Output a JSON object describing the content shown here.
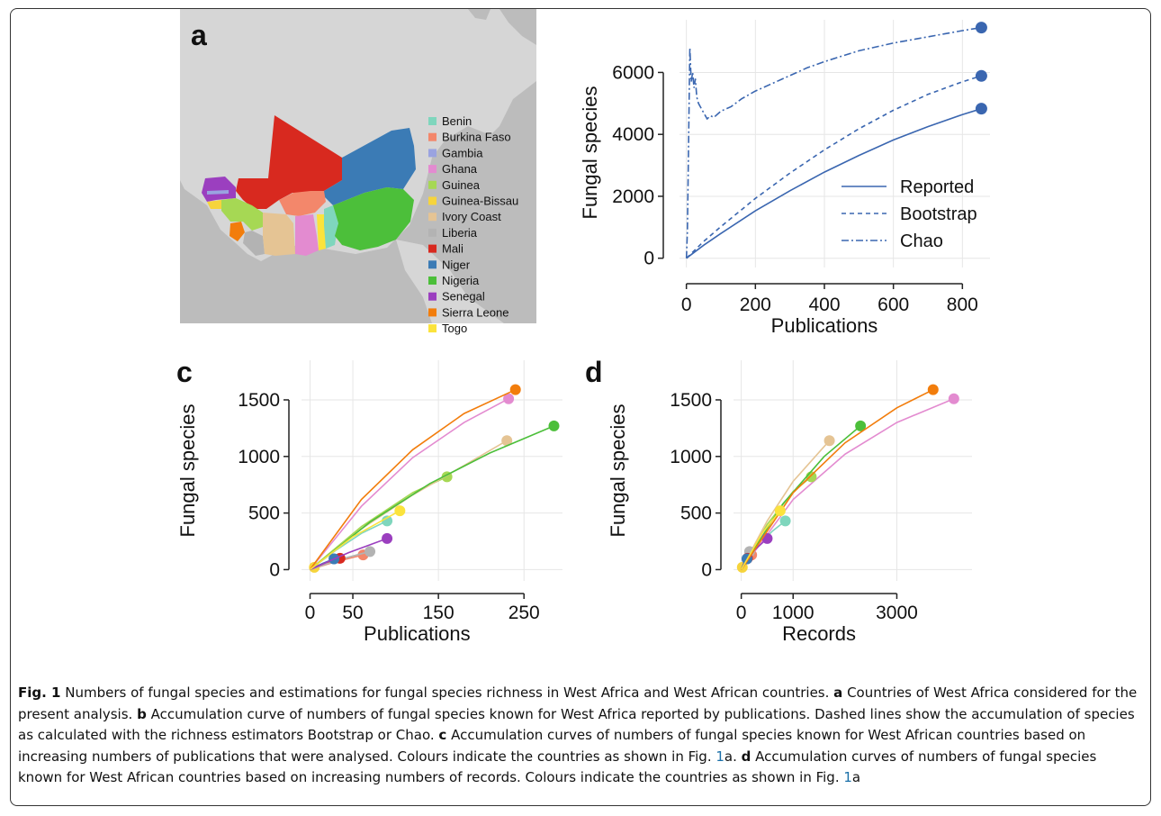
{
  "caption": {
    "fig_label": "Fig. 1",
    "intro": " Numbers of fungal species and estimations for fungal species richness in West Africa and West African countries. ",
    "a": "a",
    "a_text": " Countries of West Africa considered for the present analysis. ",
    "b": "b",
    "b_text": " Accumulation curve of numbers of fungal species known for West Africa reported by publications. Dashed lines show the accumulation of species as calculated with the richness estimators Bootstrap or Chao. ",
    "c": "c",
    "c_text": " Accumulation curves of numbers of fungal species known for West African countries based on increasing numbers of publications that were analysed. Colours indicate the countries as shown in Fig. ",
    "c_ref": "1",
    "c_ref_suffix": "a. ",
    "d": "d",
    "d_text": " Accumulation curves of numbers of fungal species known for West African countries based on increasing numbers of records. Colours indicate the countries as shown in Fig. ",
    "d_ref": "1",
    "d_ref_suffix": "a"
  },
  "map": {
    "label": "a",
    "legend": [
      {
        "name": "Benin",
        "color": "#7fd6bd"
      },
      {
        "name": "Burkina Faso",
        "color": "#f3876b"
      },
      {
        "name": "Gambia",
        "color": "#9aa3e0"
      },
      {
        "name": "Ghana",
        "color": "#e38bd0"
      },
      {
        "name": "Guinea",
        "color": "#a6d854"
      },
      {
        "name": "Guinea-Bissau",
        "color": "#f6d43c"
      },
      {
        "name": "Ivory Coast",
        "color": "#e5c494"
      },
      {
        "name": "Liberia",
        "color": "#b3b3b3"
      },
      {
        "name": "Mali",
        "color": "#d8291f"
      },
      {
        "name": "Niger",
        "color": "#3b7bb5"
      },
      {
        "name": "Nigeria",
        "color": "#4cbf3a"
      },
      {
        "name": "Senegal",
        "color": "#9b3fbf"
      },
      {
        "name": "Sierra Leone",
        "color": "#f27d0c"
      },
      {
        "name": "Togo",
        "color": "#fbe33c"
      }
    ]
  },
  "chart_data": [
    {
      "panel": "b",
      "type": "line",
      "xlabel": "Publications",
      "ylabel": "Fungal species",
      "xlim": [
        -20,
        880
      ],
      "ylim": [
        -300,
        7700
      ],
      "xticks": [
        0,
        200,
        400,
        600,
        800
      ],
      "yticks": [
        0,
        2000,
        4000,
        6000
      ],
      "grid": true,
      "legend_position": "bottom-right",
      "series": [
        {
          "name": "Reported",
          "style": "solid",
          "color": "#3a66b0",
          "x": [
            0,
            50,
            100,
            200,
            300,
            400,
            500,
            600,
            700,
            800,
            855
          ],
          "y": [
            0,
            420,
            800,
            1530,
            2180,
            2780,
            3320,
            3820,
            4250,
            4640,
            4830
          ]
        },
        {
          "name": "Bootstrap",
          "style": "dashed",
          "color": "#3a66b0",
          "x": [
            0,
            50,
            100,
            200,
            300,
            400,
            500,
            600,
            700,
            800,
            855
          ],
          "y": [
            0,
            540,
            1020,
            1930,
            2750,
            3500,
            4180,
            4780,
            5290,
            5700,
            5890
          ]
        },
        {
          "name": "Chao",
          "style": "dashdot",
          "color": "#3a66b0",
          "x": [
            0,
            3,
            6,
            10,
            14,
            18,
            22,
            26,
            30,
            35,
            40,
            50,
            60,
            70,
            80,
            100,
            130,
            160,
            200,
            250,
            300,
            350,
            400,
            500,
            600,
            700,
            800,
            855
          ],
          "y": [
            0,
            900,
            3500,
            6800,
            5700,
            6000,
            5500,
            5800,
            5200,
            5000,
            4900,
            4700,
            4500,
            4600,
            4550,
            4750,
            4900,
            5150,
            5400,
            5650,
            5900,
            6150,
            6350,
            6700,
            6950,
            7150,
            7350,
            7450
          ]
        }
      ],
      "endpoints": [
        {
          "series": "Chao",
          "x": 855,
          "y": 7450
        },
        {
          "series": "Bootstrap",
          "x": 855,
          "y": 5890
        },
        {
          "series": "Reported",
          "x": 855,
          "y": 4830
        }
      ]
    },
    {
      "panel": "c",
      "type": "line",
      "xlabel": "Publications",
      "ylabel": "Fungal species",
      "xlim": [
        -10,
        295
      ],
      "ylim": [
        -100,
        1850
      ],
      "xticks": [
        0,
        50,
        150,
        250
      ],
      "yticks": [
        0,
        500,
        1000,
        1500
      ],
      "grid": true,
      "series": [
        {
          "name": "Benin",
          "color": "#7fd6bd",
          "x": [
            0,
            30,
            60,
            90
          ],
          "y": [
            0,
            170,
            320,
            430
          ]
        },
        {
          "name": "Burkina Faso",
          "color": "#f3876b",
          "x": [
            0,
            30,
            62
          ],
          "y": [
            0,
            70,
            130
          ]
        },
        {
          "name": "Gambia",
          "color": "#9aa3e0",
          "x": [
            0,
            15,
            28
          ],
          "y": [
            0,
            55,
            95
          ]
        },
        {
          "name": "Ghana",
          "color": "#e38bd0",
          "x": [
            0,
            60,
            120,
            180,
            232
          ],
          "y": [
            0,
            560,
            990,
            1300,
            1510
          ]
        },
        {
          "name": "Guinea",
          "color": "#a6d854",
          "x": [
            0,
            60,
            120,
            160
          ],
          "y": [
            0,
            380,
            680,
            820
          ]
        },
        {
          "name": "Guinea-Bissau",
          "color": "#f6d43c",
          "x": [
            0,
            5
          ],
          "y": [
            0,
            20
          ]
        },
        {
          "name": "Ivory Coast",
          "color": "#e5c494",
          "x": [
            0,
            60,
            120,
            180,
            230
          ],
          "y": [
            0,
            360,
            660,
            920,
            1140
          ]
        },
        {
          "name": "Liberia",
          "color": "#b3b3b3",
          "x": [
            0,
            35,
            70
          ],
          "y": [
            0,
            90,
            160
          ]
        },
        {
          "name": "Mali",
          "color": "#d8291f",
          "x": [
            0,
            18,
            35
          ],
          "y": [
            0,
            60,
            100
          ]
        },
        {
          "name": "Niger",
          "color": "#3b7bb5",
          "x": [
            0,
            15,
            28
          ],
          "y": [
            0,
            55,
            95
          ]
        },
        {
          "name": "Nigeria",
          "color": "#4cbf3a",
          "x": [
            0,
            70,
            140,
            210,
            285
          ],
          "y": [
            0,
            420,
            760,
            1030,
            1270
          ]
        },
        {
          "name": "Senegal",
          "color": "#9b3fbf",
          "x": [
            0,
            45,
            90
          ],
          "y": [
            0,
            150,
            275
          ]
        },
        {
          "name": "Sierra Leone",
          "color": "#f27d0c",
          "x": [
            0,
            60,
            120,
            180,
            240
          ],
          "y": [
            0,
            620,
            1060,
            1380,
            1590
          ]
        },
        {
          "name": "Togo",
          "color": "#fbe33c",
          "x": [
            0,
            50,
            105
          ],
          "y": [
            0,
            290,
            520
          ]
        }
      ]
    },
    {
      "panel": "d",
      "type": "line",
      "xlabel": "Records",
      "ylabel": "Fungal species",
      "xlim": [
        -150,
        4450
      ],
      "ylim": [
        -100,
        1850
      ],
      "xticks": [
        0,
        1000,
        3000
      ],
      "yticks": [
        0,
        500,
        1000,
        1500
      ],
      "grid": true,
      "series": [
        {
          "name": "Benin",
          "color": "#7fd6bd",
          "x": [
            0,
            300,
            600,
            850
          ],
          "y": [
            0,
            200,
            340,
            430
          ]
        },
        {
          "name": "Burkina Faso",
          "color": "#f3876b",
          "x": [
            0,
            100,
            200
          ],
          "y": [
            0,
            80,
            130
          ]
        },
        {
          "name": "Gambia",
          "color": "#9aa3e0",
          "x": [
            0,
            60,
            110
          ],
          "y": [
            0,
            60,
            95
          ]
        },
        {
          "name": "Ghana",
          "color": "#e38bd0",
          "x": [
            0,
            1000,
            2000,
            3000,
            4100
          ],
          "y": [
            0,
            620,
            1020,
            1300,
            1510
          ]
        },
        {
          "name": "Guinea",
          "color": "#a6d854",
          "x": [
            0,
            500,
            1000,
            1350
          ],
          "y": [
            0,
            400,
            690,
            820
          ]
        },
        {
          "name": "Guinea-Bissau",
          "color": "#f6d43c",
          "x": [
            0,
            20
          ],
          "y": [
            0,
            20
          ]
        },
        {
          "name": "Ivory Coast",
          "color": "#e5c494",
          "x": [
            0,
            500,
            1000,
            1700
          ],
          "y": [
            0,
            430,
            780,
            1140
          ]
        },
        {
          "name": "Liberia",
          "color": "#b3b3b3",
          "x": [
            0,
            80,
            160
          ],
          "y": [
            0,
            100,
            160
          ]
        },
        {
          "name": "Mali",
          "color": "#d8291f",
          "x": [
            0,
            60,
            120
          ],
          "y": [
            0,
            65,
            100
          ]
        },
        {
          "name": "Niger",
          "color": "#3b7bb5",
          "x": [
            0,
            60,
            110
          ],
          "y": [
            0,
            60,
            95
          ]
        },
        {
          "name": "Nigeria",
          "color": "#4cbf3a",
          "x": [
            0,
            800,
            1600,
            2300
          ],
          "y": [
            0,
            580,
            1000,
            1270
          ]
        },
        {
          "name": "Senegal",
          "color": "#9b3fbf",
          "x": [
            0,
            250,
            500
          ],
          "y": [
            0,
            170,
            275
          ]
        },
        {
          "name": "Sierra Leone",
          "color": "#f27d0c",
          "x": [
            0,
            1000,
            2000,
            3000,
            3700
          ],
          "y": [
            0,
            680,
            1120,
            1430,
            1590
          ]
        },
        {
          "name": "Togo",
          "color": "#fbe33c",
          "x": [
            0,
            400,
            750
          ],
          "y": [
            0,
            320,
            520
          ]
        }
      ]
    }
  ]
}
